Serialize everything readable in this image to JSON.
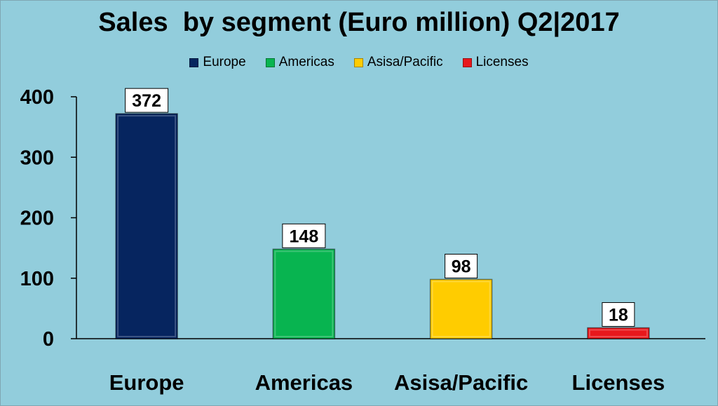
{
  "chart_data": {
    "type": "bar",
    "title": "Sales  by segment (Euro million) Q2|2017",
    "categories": [
      "Europe",
      "Americas",
      "Asisa/Pacific",
      "Licenses"
    ],
    "values": [
      372,
      148,
      98,
      18
    ],
    "colors": [
      "#06255f",
      "#08b450",
      "#ffcc00",
      "#e8181c"
    ],
    "legend": {
      "position": "top",
      "entries": [
        "Europe",
        "Americas",
        "Asisa/Pacific",
        "Licenses"
      ]
    },
    "yticks": [
      "0",
      "100",
      "200",
      "300",
      "400"
    ],
    "ylim": [
      0,
      400
    ],
    "grid": false,
    "background": "#92cddc"
  }
}
